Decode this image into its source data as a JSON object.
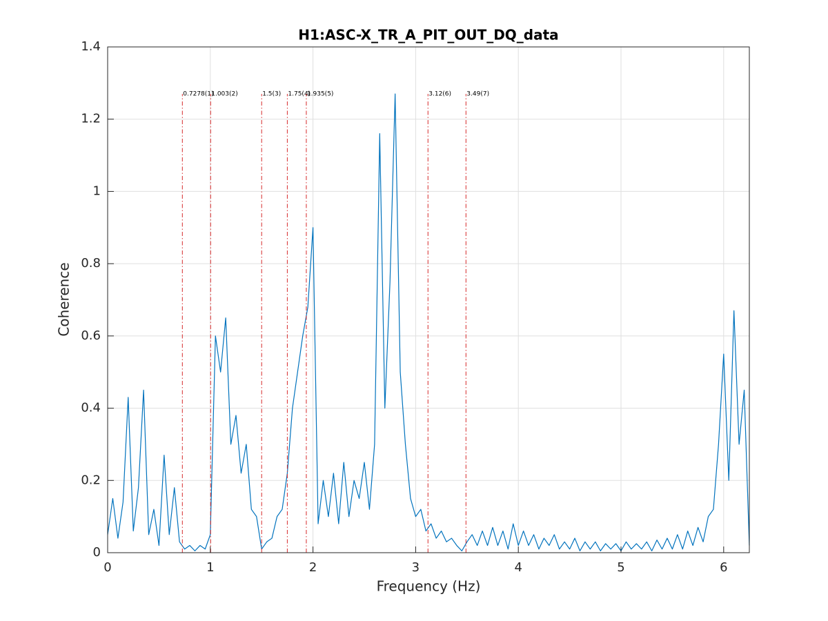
{
  "chart_data": {
    "type": "line",
    "title": "H1:ASC-X_TR_A_PIT_OUT_DQ_data",
    "x_label": "Frequency (Hz)",
    "y_label": "Coherence",
    "xlim": [
      0,
      6.25
    ],
    "ylim": [
      0,
      1.4
    ],
    "xticks": [
      0,
      1,
      2,
      3,
      4,
      5,
      6
    ],
    "yticks": [
      0,
      0.2,
      0.4,
      0.6,
      0.8,
      1,
      1.2,
      1.4
    ],
    "grid": true,
    "x": [
      0,
      0.05,
      0.1,
      0.15,
      0.2,
      0.25,
      0.3,
      0.35,
      0.4,
      0.45,
      0.5,
      0.55,
      0.6,
      0.65,
      0.7,
      0.75,
      0.8,
      0.85,
      0.9,
      0.95,
      1,
      1.05,
      1.1,
      1.15,
      1.2,
      1.25,
      1.3,
      1.35,
      1.4,
      1.45,
      1.5,
      1.55,
      1.6,
      1.65,
      1.7,
      1.75,
      1.8,
      1.85,
      1.9,
      1.95,
      2,
      2.05,
      2.1,
      2.15,
      2.2,
      2.25,
      2.3,
      2.35,
      2.4,
      2.45,
      2.5,
      2.55,
      2.6,
      2.65,
      2.7,
      2.75,
      2.8,
      2.85,
      2.9,
      2.95,
      3,
      3.05,
      3.1,
      3.15,
      3.2,
      3.25,
      3.3,
      3.35,
      3.4,
      3.45,
      3.5,
      3.55,
      3.6,
      3.65,
      3.7,
      3.75,
      3.8,
      3.85,
      3.9,
      3.95,
      4,
      4.05,
      4.1,
      4.15,
      4.2,
      4.25,
      4.3,
      4.35,
      4.4,
      4.45,
      4.5,
      4.55,
      4.6,
      4.65,
      4.7,
      4.75,
      4.8,
      4.85,
      4.9,
      4.95,
      5,
      5.05,
      5.1,
      5.15,
      5.2,
      5.25,
      5.3,
      5.35,
      5.4,
      5.45,
      5.5,
      5.55,
      5.6,
      5.65,
      5.7,
      5.75,
      5.8,
      5.85,
      5.9,
      5.95,
      6,
      6.05,
      6.1,
      6.15,
      6.2,
      6.25
    ],
    "series": [
      {
        "color": "#0072bd",
        "values": [
          0.05,
          0.15,
          0.04,
          0.14,
          0.43,
          0.06,
          0.18,
          0.45,
          0.05,
          0.12,
          0.02,
          0.27,
          0.05,
          0.18,
          0.03,
          0.01,
          0.02,
          0.005,
          0.02,
          0.01,
          0.05,
          0.6,
          0.5,
          0.65,
          0.3,
          0.38,
          0.22,
          0.3,
          0.12,
          0.1,
          0.01,
          0.03,
          0.04,
          0.1,
          0.12,
          0.22,
          0.4,
          0.5,
          0.6,
          0.68,
          0.9,
          0.08,
          0.2,
          0.1,
          0.22,
          0.08,
          0.25,
          0.1,
          0.2,
          0.15,
          0.25,
          0.12,
          0.3,
          1.16,
          0.4,
          0.75,
          1.27,
          0.5,
          0.3,
          0.15,
          0.1,
          0.12,
          0.06,
          0.08,
          0.04,
          0.06,
          0.03,
          0.04,
          0.02,
          0.005,
          0.03,
          0.05,
          0.02,
          0.06,
          0.02,
          0.07,
          0.02,
          0.06,
          0.01,
          0.08,
          0.02,
          0.06,
          0.02,
          0.05,
          0.01,
          0.04,
          0.02,
          0.05,
          0.01,
          0.03,
          0.01,
          0.04,
          0.005,
          0.03,
          0.01,
          0.03,
          0.005,
          0.025,
          0.01,
          0.025,
          0.005,
          0.03,
          0.01,
          0.025,
          0.01,
          0.03,
          0.005,
          0.035,
          0.01,
          0.04,
          0.01,
          0.05,
          0.01,
          0.06,
          0.02,
          0.07,
          0.03,
          0.1,
          0.12,
          0.3,
          0.55,
          0.2,
          0.67,
          0.3,
          0.45,
          0.02
        ]
      }
    ],
    "markers": {
      "color": "#d62728",
      "values": [
        0.7278,
        1.003,
        1.5,
        1.75,
        1.935,
        3.12,
        3.49
      ],
      "labels": [
        "0.7278(1)",
        "1.003(2)",
        "1.5(3)",
        "1.75(4)",
        "1.935(5)",
        "3.12(6)",
        "3.49(7)"
      ]
    }
  }
}
